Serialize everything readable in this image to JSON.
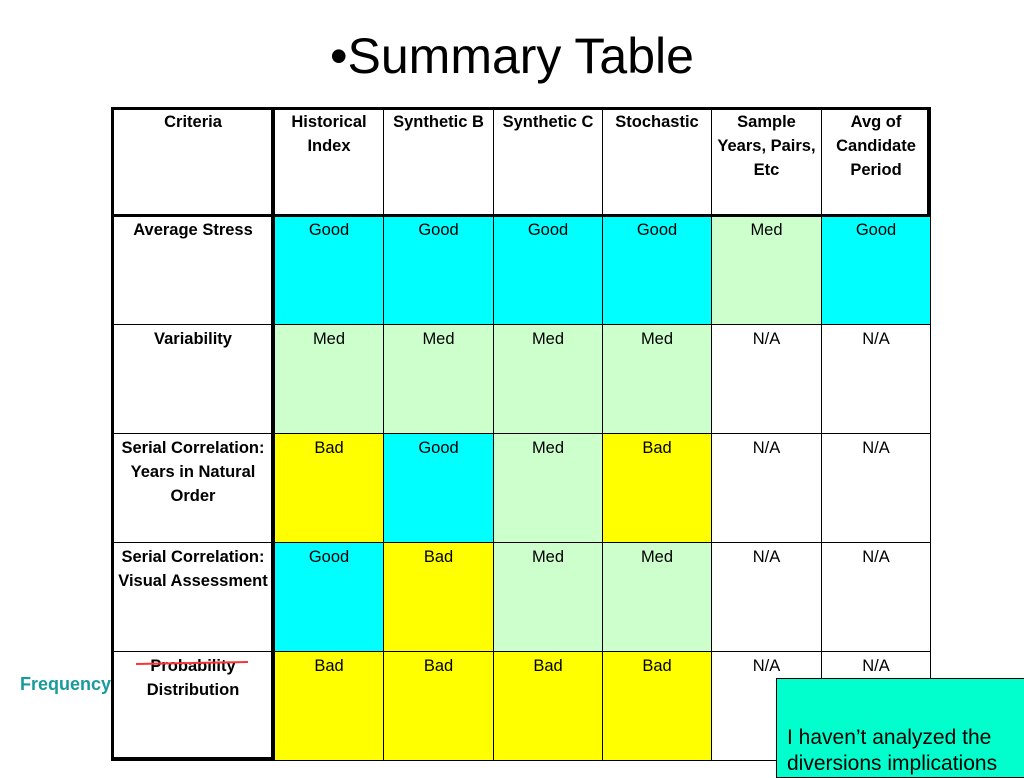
{
  "title": "•Summary Table",
  "table": {
    "headers": [
      "Criteria",
      "Historical Index",
      "Synthetic B",
      "Synthetic C",
      "Stochastic",
      "Sample Years, Pairs, Etc",
      "Avg of Candidate Period"
    ],
    "rows": [
      {
        "criteria": "Average Stress",
        "values": [
          "Good",
          "Good",
          "Good",
          "Good",
          "Med",
          "Good"
        ]
      },
      {
        "criteria": "Variability",
        "values": [
          "Med",
          "Med",
          "Med",
          "Med",
          "N/A",
          "N/A"
        ]
      },
      {
        "criteria": "Serial Correlation: Years in Natural Order",
        "values": [
          "Bad",
          "Good",
          "Med",
          "Bad",
          "N/A",
          "N/A"
        ]
      },
      {
        "criteria": "Serial Correlation: Visual Assessment",
        "values": [
          "Good",
          "Bad",
          "Med",
          "Med",
          "N/A",
          "N/A"
        ]
      },
      {
        "criteria": "Probability Distribution",
        "values": [
          "Bad",
          "Bad",
          "Bad",
          "Bad",
          "N/A",
          "N/A"
        ]
      }
    ]
  },
  "annotation": {
    "replacement_word": "Frequency",
    "note_line1": "I haven’t analyzed the",
    "note_line2": "diversions implications"
  },
  "colors": {
    "Good": "#00ffff",
    "Med": "#ccffcc",
    "Bad": "#ffff00",
    "N/A": "#ffffff"
  }
}
